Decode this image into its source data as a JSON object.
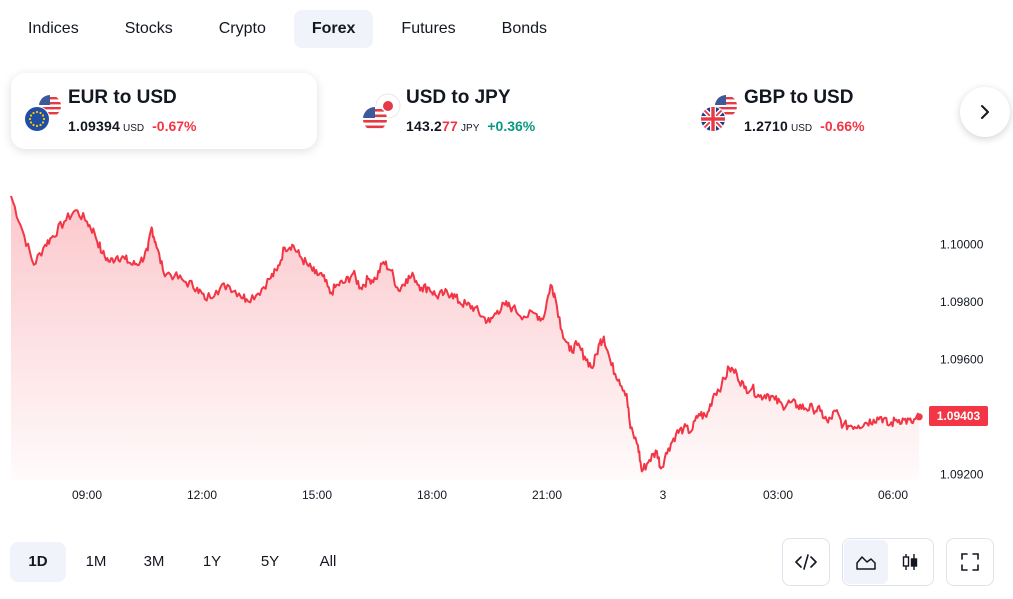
{
  "tabs": [
    {
      "label": "Indices",
      "active": false
    },
    {
      "label": "Stocks",
      "active": false
    },
    {
      "label": "Crypto",
      "active": false
    },
    {
      "label": "Forex",
      "active": true
    },
    {
      "label": "Futures",
      "active": false
    },
    {
      "label": "Bonds",
      "active": false
    }
  ],
  "tickers": [
    {
      "pair": "EUR to USD",
      "price_main": "1.09394",
      "price_highlight": "",
      "unit": "USD",
      "change": "-0.67%",
      "direction": "down",
      "flags": [
        "us-flag-icon",
        "eu-flag-icon"
      ]
    },
    {
      "pair": "USD to JPY",
      "price_main": "143.2",
      "price_highlight": "77",
      "unit": "JPY",
      "change": "+0.36%",
      "direction": "up",
      "flags": [
        "jp-flag-icon",
        "us-flag-icon"
      ]
    },
    {
      "pair": "GBP to USD",
      "price_main": "1.2710",
      "price_highlight": "",
      "unit": "USD",
      "change": "-0.66%",
      "direction": "down",
      "flags": [
        "us-flag-icon",
        "uk-flag-icon"
      ]
    }
  ],
  "chart_data": {
    "type": "area",
    "series": [
      {
        "name": "EUR to USD",
        "color": "#f23645"
      }
    ],
    "x_tick_labels": [
      "09:00",
      "12:00",
      "15:00",
      "18:00",
      "21:00",
      "3",
      "03:00",
      "06:00"
    ],
    "y_tick_labels": [
      "1.10000",
      "1.09800",
      "1.09600",
      "1.09400",
      "1.09200"
    ],
    "ylim": [
      1.0918,
      1.1018
    ],
    "last_price": "1.09403",
    "points": [
      [
        0,
        1.1017
      ],
      [
        0.3,
        1.1005
      ],
      [
        0.6,
        1.0993
      ],
      [
        0.9,
        1.1
      ],
      [
        1.1,
        1.1003
      ],
      [
        1.4,
        1.1008
      ],
      [
        1.7,
        1.1012
      ],
      [
        2,
        1.1008
      ],
      [
        2.2,
        1.1004
      ],
      [
        2.4,
        1.0997
      ],
      [
        2.6,
        1.0994
      ],
      [
        2.8,
        1.0996
      ],
      [
        3,
        1.0995
      ],
      [
        3.2,
        1.0993
      ],
      [
        3.4,
        1.0994
      ],
      [
        3.6,
        1.0998
      ],
      [
        3.7,
        1.1006
      ],
      [
        3.8,
        1.1001
      ],
      [
        4,
        1.0991
      ],
      [
        4.3,
        1.0989
      ],
      [
        4.6,
        1.0987
      ],
      [
        4.9,
        1.0985
      ],
      [
        5.1,
        1.0981
      ],
      [
        5.4,
        1.0984
      ],
      [
        5.7,
        1.0986
      ],
      [
        6,
        1.0983
      ],
      [
        6.2,
        1.0981
      ],
      [
        6.5,
        1.0983
      ],
      [
        6.8,
        1.0988
      ],
      [
        7,
        1.0991
      ],
      [
        7.2,
        1.0999
      ],
      [
        7.4,
        1.1
      ],
      [
        7.6,
        1.0996
      ],
      [
        7.8,
        1.0993
      ],
      [
        8,
        1.099
      ],
      [
        8.2,
        1.0989
      ],
      [
        8.4,
        1.0983
      ],
      [
        8.6,
        1.0986
      ],
      [
        8.8,
        1.0987
      ],
      [
        9,
        1.099
      ],
      [
        9.2,
        1.0985
      ],
      [
        9.4,
        1.0988
      ],
      [
        9.6,
        1.0988
      ],
      [
        9.8,
        1.0994
      ],
      [
        10,
        1.0991
      ],
      [
        10.2,
        1.0984
      ],
      [
        10.4,
        1.0988
      ],
      [
        10.6,
        1.0989
      ],
      [
        10.8,
        1.0985
      ],
      [
        11,
        1.0985
      ],
      [
        11.2,
        1.0982
      ],
      [
        11.4,
        1.0983
      ],
      [
        11.6,
        1.0983
      ],
      [
        11.8,
        1.098
      ],
      [
        12,
        1.0979
      ],
      [
        12.2,
        1.0978
      ],
      [
        12.4,
        1.0975
      ],
      [
        12.6,
        1.0973
      ],
      [
        12.8,
        1.0977
      ],
      [
        13,
        1.0979
      ],
      [
        13.2,
        1.0978
      ],
      [
        13.5,
        1.0975
      ],
      [
        13.8,
        1.0976
      ],
      [
        14,
        1.0974
      ],
      [
        14.2,
        1.0986
      ],
      [
        14.3,
        1.0983
      ],
      [
        14.5,
        1.097
      ],
      [
        14.7,
        1.0963
      ],
      [
        14.9,
        1.0965
      ],
      [
        15.1,
        1.0961
      ],
      [
        15.3,
        1.0957
      ],
      [
        15.5,
        1.0966
      ],
      [
        15.6,
        1.0968
      ],
      [
        15.8,
        1.0958
      ],
      [
        16,
        1.0953
      ],
      [
        16.2,
        1.0948
      ],
      [
        16.3,
        1.0936
      ],
      [
        16.5,
        1.093
      ],
      [
        16.6,
        1.0921
      ],
      [
        16.8,
        1.0925
      ],
      [
        17,
        1.0928
      ],
      [
        17.1,
        1.0922
      ],
      [
        17.3,
        1.0929
      ],
      [
        17.5,
        1.0934
      ],
      [
        17.7,
        1.0936
      ],
      [
        17.9,
        1.0935
      ],
      [
        18.1,
        1.0941
      ],
      [
        18.3,
        1.094
      ],
      [
        18.5,
        1.0948
      ],
      [
        18.7,
        1.0951
      ],
      [
        18.9,
        1.0957
      ],
      [
        19.1,
        1.0955
      ],
      [
        19.3,
        1.095
      ],
      [
        19.5,
        1.095
      ],
      [
        19.7,
        1.0947
      ],
      [
        19.9,
        1.0948
      ],
      [
        20.1,
        1.0946
      ],
      [
        20.3,
        1.0944
      ],
      [
        20.5,
        1.0945
      ],
      [
        20.7,
        1.0944
      ],
      [
        20.9,
        1.0943
      ],
      [
        21.1,
        1.0943
      ],
      [
        21.3,
        1.0942
      ],
      [
        21.5,
        1.0938
      ],
      [
        21.7,
        1.0942
      ],
      [
        21.9,
        1.0937
      ],
      [
        22.1,
        1.0937
      ],
      [
        22.3,
        1.0937
      ],
      [
        22.5,
        1.0938
      ],
      [
        22.7,
        1.0939
      ],
      [
        22.9,
        1.094
      ],
      [
        23.1,
        1.0937
      ],
      [
        23.3,
        1.0939
      ],
      [
        23.5,
        1.0939
      ],
      [
        23.7,
        1.0938
      ],
      [
        23.9,
        1.094
      ]
    ]
  },
  "ranges": [
    {
      "label": "1D",
      "active": true
    },
    {
      "label": "1M",
      "active": false
    },
    {
      "label": "3M",
      "active": false
    },
    {
      "label": "1Y",
      "active": false
    },
    {
      "label": "5Y",
      "active": false
    },
    {
      "label": "All",
      "active": false
    }
  ],
  "tools": {
    "embed": "code-icon",
    "area": "area-chart-icon",
    "candles": "candlestick-icon",
    "fullscreen": "fullscreen-icon"
  }
}
